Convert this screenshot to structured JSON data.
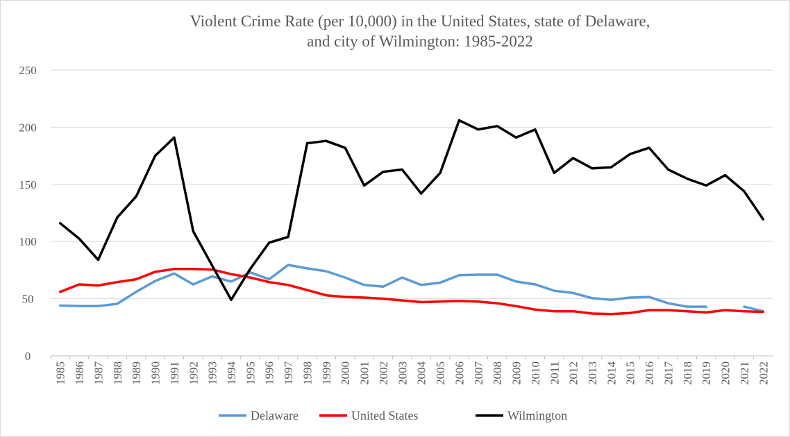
{
  "chart_data": {
    "type": "line",
    "title": "Violent Crime Rate (per 10,000) in the United States, state of Delaware, and city of Wilmington: 1985-2022",
    "title_lines": [
      "Violent Crime Rate (per 10,000) in the United States, state of Delaware,",
      "and city of Wilmington: 1985-2022"
    ],
    "xlabel": "",
    "ylabel": "",
    "ylim": [
      0,
      250
    ],
    "yticks": [
      "0",
      "50",
      "100",
      "150",
      "200",
      "250"
    ],
    "grid": true,
    "legend_position": "bottom",
    "categories": [
      "1985",
      "1986",
      "1987",
      "1988",
      "1989",
      "1990",
      "1991",
      "1992",
      "1993",
      "1994",
      "1995",
      "1996",
      "1997",
      "1998",
      "1999",
      "2000",
      "2001",
      "2002",
      "2003",
      "2004",
      "2005",
      "2006",
      "2007",
      "2008",
      "2009",
      "2010",
      "2011",
      "2012",
      "2013",
      "2014",
      "2015",
      "2016",
      "2017",
      "2018",
      "2019",
      "2020",
      "2021",
      "2022"
    ],
    "series": [
      {
        "name": "Delaware",
        "color": "#5b9bd5",
        "values": [
          44,
          43.5,
          43.5,
          45.5,
          56,
          65.5,
          72,
          62.5,
          69.5,
          65,
          73,
          67,
          79.5,
          76.5,
          74,
          68.5,
          62,
          60.5,
          68.5,
          62,
          64,
          70.5,
          71,
          71,
          65,
          62.5,
          57,
          55,
          50.5,
          49,
          51,
          51.5,
          46,
          43,
          43,
          null,
          43,
          39
        ]
      },
      {
        "name": "United States",
        "color": "#ff0000",
        "values": [
          56,
          62.5,
          61.5,
          64.5,
          67,
          73.5,
          76,
          76,
          75.5,
          71.5,
          68.5,
          64.5,
          62,
          57.5,
          53,
          51.5,
          51,
          50,
          48.5,
          47,
          47.5,
          48,
          47.5,
          46,
          43.5,
          40.5,
          39,
          39,
          37,
          36.5,
          37.5,
          40,
          40,
          39,
          38,
          40,
          39,
          38.5
        ]
      },
      {
        "name": "Wilmington",
        "color": "#000000",
        "values": [
          116,
          102.5,
          84,
          121,
          139.5,
          175,
          191,
          109,
          79,
          49,
          76,
          99,
          104,
          186,
          188,
          182,
          149,
          161,
          163,
          142,
          160,
          206,
          198,
          201,
          191,
          198,
          160,
          173,
          164,
          165,
          176.5,
          182,
          163,
          155,
          149,
          158,
          144,
          119.5
        ]
      }
    ]
  }
}
